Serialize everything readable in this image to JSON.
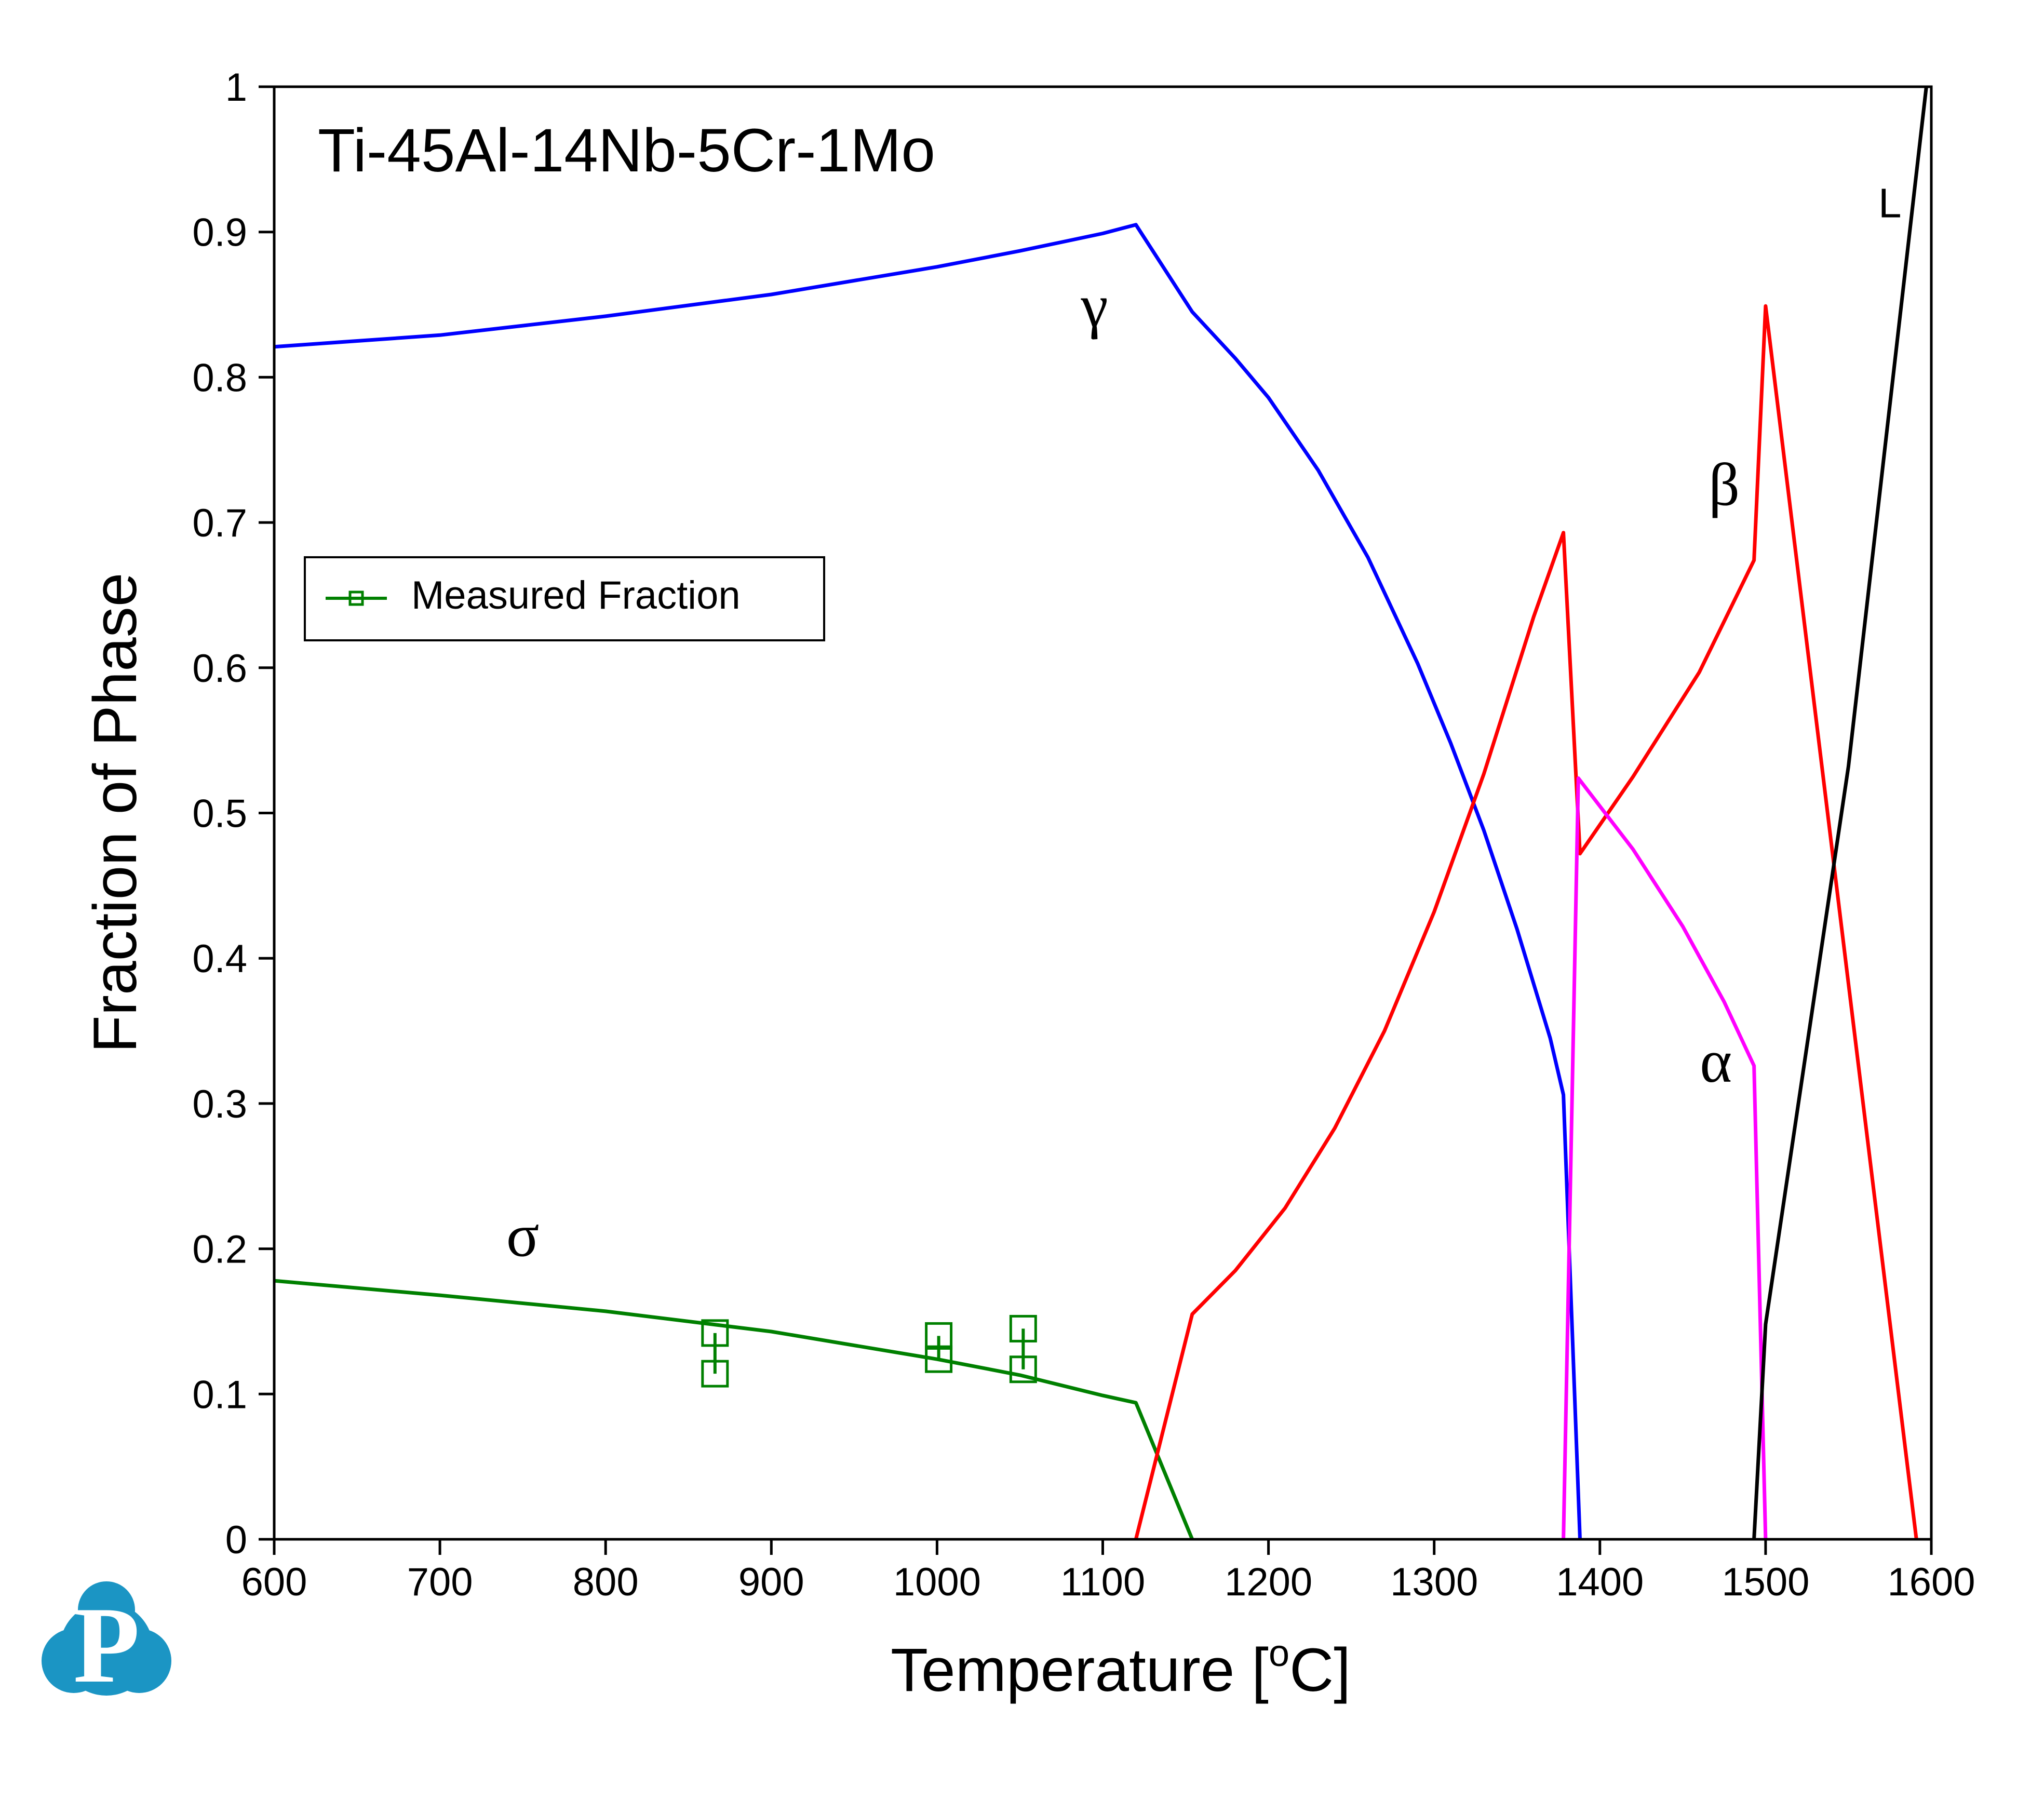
{
  "chart_data": {
    "type": "line",
    "title": "Ti-45Al-14Nb-5Cr-1Mo",
    "xlabel": "Temperature [oC]",
    "xlabel_main": "Temperature [",
    "xlabel_sup": "o",
    "xlabel_end": "C]",
    "ylabel": "Fraction of Phase",
    "xlim": [
      600,
      1600
    ],
    "ylim": [
      0,
      1
    ],
    "xticks": [
      600,
      700,
      800,
      900,
      1000,
      1100,
      1200,
      1300,
      1400,
      1500,
      1600
    ],
    "yticks": [
      0,
      0.1,
      0.2,
      0.3,
      0.4,
      0.5,
      0.6,
      0.7,
      0.8,
      0.9,
      1
    ],
    "ytick_labels": [
      "0",
      "0.1",
      "0.2",
      "0.3",
      "0.4",
      "0.5",
      "0.6",
      "0.7",
      "0.8",
      "0.9",
      "1"
    ],
    "grid": false,
    "legend": {
      "position": "upper-left",
      "entries": [
        "Measured Fraction"
      ]
    },
    "series": [
      {
        "name": "γ",
        "color": "#0000ff",
        "x": [
          600,
          700,
          800,
          900,
          1000,
          1050,
          1100,
          1120,
          1154,
          1180,
          1200,
          1230,
          1260,
          1290,
          1310,
          1330,
          1350,
          1370,
          1378,
          1388
        ],
        "y": [
          0.821,
          0.829,
          0.842,
          0.857,
          0.876,
          0.887,
          0.899,
          0.905,
          0.845,
          0.813,
          0.786,
          0.736,
          0.676,
          0.603,
          0.548,
          0.488,
          0.42,
          0.345,
          0.306,
          0
        ]
      },
      {
        "name": "σ",
        "color": "#008000",
        "x": [
          600,
          700,
          800,
          900,
          1000,
          1050,
          1100,
          1120,
          1154
        ],
        "y": [
          0.178,
          0.168,
          0.157,
          0.143,
          0.124,
          0.113,
          0.099,
          0.094,
          0
        ]
      },
      {
        "name": "β",
        "color": "#ff0000",
        "x": [
          1120,
          1154,
          1180,
          1210,
          1240,
          1270,
          1300,
          1330,
          1360,
          1378,
          1388,
          1420,
          1460,
          1493,
          1500,
          1591
        ],
        "y": [
          0,
          0.155,
          0.185,
          0.228,
          0.283,
          0.35,
          0.432,
          0.527,
          0.635,
          0.693,
          0.472,
          0.525,
          0.597,
          0.674,
          0.849,
          0
        ]
      },
      {
        "name": "α",
        "color": "#ff00ff",
        "x": [
          1378,
          1387,
          1420,
          1450,
          1475,
          1493,
          1500
        ],
        "y": [
          0,
          0.524,
          0.475,
          0.422,
          0.37,
          0.326,
          0
        ]
      },
      {
        "name": "L",
        "color": "#000000",
        "x": [
          1493,
          1500,
          1550,
          1597
        ],
        "y": [
          0,
          0.148,
          0.532,
          1.0
        ]
      }
    ],
    "measured": {
      "name": "Measured Fraction",
      "color": "#008000",
      "points": [
        {
          "x": 866,
          "y": 0.142
        },
        {
          "x": 866,
          "y": 0.114
        },
        {
          "x": 1001,
          "y": 0.14
        },
        {
          "x": 1001,
          "y": 0.124
        },
        {
          "x": 1052,
          "y": 0.145
        },
        {
          "x": 1052,
          "y": 0.117
        }
      ],
      "error_bars": [
        {
          "x": 866,
          "lo": 0.114,
          "hi": 0.142
        },
        {
          "x": 1001,
          "lo": 0.124,
          "hi": 0.14
        },
        {
          "x": 1052,
          "lo": 0.117,
          "hi": 0.145
        }
      ]
    },
    "phase_labels": [
      {
        "text": "γ",
        "x": 1095,
        "y": 0.835
      },
      {
        "text": "σ",
        "x": 750,
        "y": 0.195
      },
      {
        "text": "β",
        "x": 1475,
        "y": 0.712
      },
      {
        "text": "α",
        "x": 1470,
        "y": 0.315
      },
      {
        "text": "L",
        "x": 1575,
        "y": 0.91
      }
    ]
  },
  "logo": {
    "letter": "P",
    "color": "#1b95c4"
  }
}
